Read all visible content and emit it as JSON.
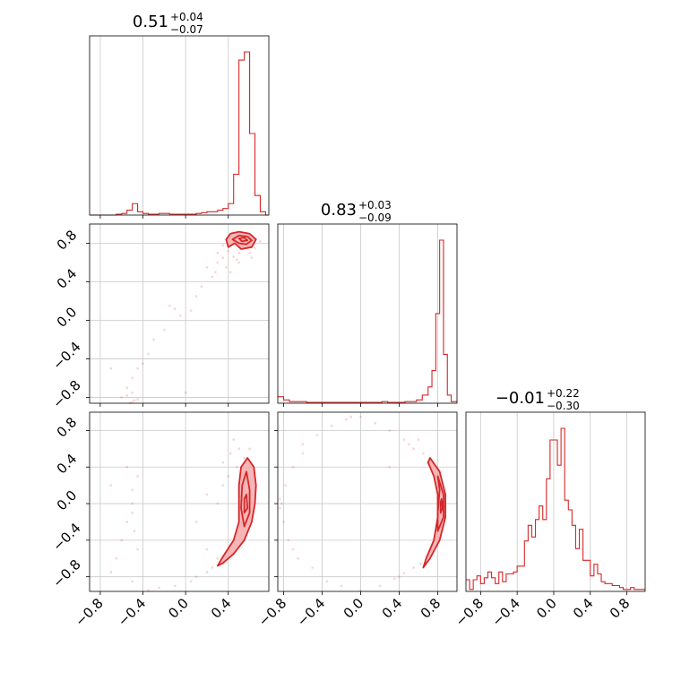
{
  "colors": {
    "accent": "#d62728",
    "grid": "#c8c8c8",
    "axis": "#000000",
    "fill": "#f4a9aa"
  },
  "ticks": {
    "x": [
      "−0.8",
      "−0.4",
      "0.0",
      "0.4",
      "0.8"
    ],
    "y": [
      "−0.8",
      "−0.4",
      "0.0",
      "0.4",
      "0.8"
    ]
  },
  "chart_data": [
    {
      "type": "histogram",
      "panel": "p0_hist",
      "title_value": "0.51",
      "title_plus": "+0.04",
      "title_minus": "−0.07",
      "xlim": [
        -0.9,
        0.78
      ],
      "bins": [
        -0.9,
        -0.85,
        -0.8,
        -0.75,
        -0.7,
        -0.65,
        -0.6,
        -0.55,
        -0.5,
        -0.45,
        -0.4,
        -0.35,
        -0.3,
        -0.25,
        -0.2,
        -0.15,
        -0.1,
        -0.05,
        0.0,
        0.05,
        0.1,
        0.15,
        0.2,
        0.25,
        0.3,
        0.35,
        0.4,
        0.45,
        0.5,
        0.55,
        0.6,
        0.65,
        0.7,
        0.75,
        0.78
      ],
      "values": [
        0,
        0,
        0,
        0,
        0,
        0.005,
        0.01,
        0.03,
        0.07,
        0.02,
        0.01,
        0.005,
        0.005,
        0.01,
        0.01,
        0.005,
        0.005,
        0.005,
        0.005,
        0.005,
        0.01,
        0.015,
        0.02,
        0.02,
        0.03,
        0.04,
        0.07,
        0.25,
        0.95,
        1.0,
        0.5,
        0.12,
        0.02,
        0.0
      ],
      "grid": true
    },
    {
      "type": "histogram",
      "panel": "p1_hist",
      "title_value": "0.83",
      "title_plus": "+0.03",
      "title_minus": "−0.09",
      "xlim": [
        -0.86,
        1.0
      ],
      "bins": [
        -0.86,
        -0.8,
        -0.74,
        -0.68,
        -0.62,
        -0.56,
        -0.5,
        -0.44,
        -0.38,
        -0.32,
        -0.26,
        -0.2,
        -0.14,
        -0.08,
        -0.02,
        0.04,
        0.1,
        0.16,
        0.22,
        0.28,
        0.34,
        0.4,
        0.46,
        0.52,
        0.58,
        0.64,
        0.7,
        0.74,
        0.78,
        0.82,
        0.86,
        0.9,
        0.94,
        1.0
      ],
      "values": [
        0.04,
        0.02,
        0.01,
        0.01,
        0.01,
        0.005,
        0.005,
        0.005,
        0.005,
        0.005,
        0.005,
        0.005,
        0.005,
        0.005,
        0.005,
        0.005,
        0.005,
        0.005,
        0.01,
        0.005,
        0.005,
        0.005,
        0.01,
        0.01,
        0.02,
        0.05,
        0.1,
        0.2,
        0.55,
        1.0,
        0.3,
        0.05,
        0.01
      ],
      "grid": true
    },
    {
      "type": "histogram",
      "panel": "p2_hist",
      "title_value": "−0.01",
      "title_plus": "+0.22",
      "title_minus": "−0.30",
      "xlim": [
        -0.96,
        1.0
      ],
      "bins": [
        -0.96,
        -0.92,
        -0.88,
        -0.84,
        -0.8,
        -0.76,
        -0.72,
        -0.68,
        -0.64,
        -0.6,
        -0.56,
        -0.52,
        -0.48,
        -0.44,
        -0.4,
        -0.36,
        -0.32,
        -0.28,
        -0.24,
        -0.2,
        -0.16,
        -0.12,
        -0.08,
        -0.04,
        0.0,
        0.04,
        0.08,
        0.12,
        0.16,
        0.2,
        0.24,
        0.28,
        0.32,
        0.36,
        0.4,
        0.44,
        0.48,
        0.52,
        0.56,
        0.6,
        0.64,
        0.68,
        0.72,
        0.76,
        0.8,
        0.84,
        0.88,
        0.92,
        0.96,
        1.0
      ],
      "values": [
        0.06,
        0.01,
        0.06,
        0.08,
        0.04,
        0.07,
        0.1,
        0.07,
        0.04,
        0.1,
        0.05,
        0.09,
        0.09,
        0.1,
        0.13,
        0.13,
        0.26,
        0.34,
        0.28,
        0.37,
        0.44,
        0.37,
        0.58,
        0.78,
        0.78,
        0.65,
        0.84,
        0.47,
        0.42,
        0.34,
        0.22,
        0.32,
        0.16,
        0.16,
        0.08,
        0.14,
        0.09,
        0.05,
        0.04,
        0.04,
        0.03,
        0.03,
        0.02,
        0.01,
        0.01,
        0.02,
        0.01,
        0.01,
        0.01
      ],
      "grid": true
    },
    {
      "type": "scatter",
      "panel": "p10_scatter",
      "xlim": [
        -0.9,
        0.78
      ],
      "ylim": [
        -0.86,
        1.0
      ],
      "points": [
        [
          0.35,
          0.78
        ],
        [
          0.4,
          0.72
        ],
        [
          0.3,
          0.6
        ],
        [
          0.28,
          0.5
        ],
        [
          0.25,
          0.45
        ],
        [
          0.45,
          0.66
        ],
        [
          0.35,
          0.65
        ],
        [
          0.2,
          0.55
        ],
        [
          0.38,
          0.55
        ],
        [
          0.3,
          0.7
        ],
        [
          0.15,
          0.35
        ],
        [
          0.1,
          0.25
        ],
        [
          0.05,
          0.1
        ],
        [
          -0.05,
          0.05
        ],
        [
          -0.1,
          0.12
        ],
        [
          -0.2,
          -0.1
        ],
        [
          -0.3,
          -0.2
        ],
        [
          -0.35,
          -0.35
        ],
        [
          -0.4,
          -0.45
        ],
        [
          -0.45,
          -0.5
        ],
        [
          -0.5,
          -0.6
        ],
        [
          -0.55,
          -0.7
        ],
        [
          -0.5,
          -0.75
        ],
        [
          -0.55,
          -0.78
        ],
        [
          -0.45,
          -0.82
        ],
        [
          -0.6,
          -0.8
        ],
        [
          -0.5,
          -0.85
        ],
        [
          -0.48,
          -0.83
        ],
        [
          -0.52,
          -0.86
        ],
        [
          -0.7,
          -0.5
        ],
        [
          0.0,
          -0.75
        ],
        [
          -0.15,
          0.15
        ],
        [
          0.42,
          0.5
        ],
        [
          0.5,
          0.6
        ],
        [
          0.6,
          0.7
        ],
        [
          0.55,
          0.8
        ],
        [
          0.52,
          0.75
        ],
        [
          0.45,
          0.8
        ],
        [
          0.65,
          0.75
        ],
        [
          0.7,
          0.82
        ],
        [
          0.5,
          0.7
        ],
        [
          0.62,
          0.65
        ],
        [
          0.48,
          0.63
        ]
      ],
      "contours": [
        [
          [
            0.38,
            0.84
          ],
          [
            0.42,
            0.9
          ],
          [
            0.5,
            0.92
          ],
          [
            0.6,
            0.9
          ],
          [
            0.66,
            0.84
          ],
          [
            0.62,
            0.76
          ],
          [
            0.52,
            0.74
          ],
          [
            0.46,
            0.8
          ],
          [
            0.4,
            0.76
          ]
        ],
        [
          [
            0.44,
            0.84
          ],
          [
            0.5,
            0.88
          ],
          [
            0.58,
            0.87
          ],
          [
            0.62,
            0.83
          ],
          [
            0.57,
            0.79
          ],
          [
            0.5,
            0.8
          ]
        ],
        [
          [
            0.5,
            0.85
          ],
          [
            0.55,
            0.86
          ],
          [
            0.58,
            0.83
          ],
          [
            0.53,
            0.82
          ]
        ]
      ],
      "grid": true
    },
    {
      "type": "scatter",
      "panel": "p20_scatter",
      "xlim": [
        -0.9,
        0.78
      ],
      "ylim": [
        -0.96,
        1.0
      ],
      "points": [
        [
          0.45,
          0.7
        ],
        [
          0.5,
          0.6
        ],
        [
          0.55,
          0.5
        ],
        [
          0.6,
          0.4
        ],
        [
          0.4,
          0.3
        ],
        [
          0.35,
          0.2
        ],
        [
          0.3,
          0.0
        ],
        [
          0.2,
          0.1
        ],
        [
          0.1,
          -0.2
        ],
        [
          0.2,
          -0.5
        ],
        [
          0.3,
          -0.6
        ],
        [
          0.25,
          -0.7
        ],
        [
          0.2,
          -0.75
        ],
        [
          0.1,
          -0.8
        ],
        [
          0.05,
          -0.85
        ],
        [
          -0.1,
          -0.9
        ],
        [
          -0.25,
          -0.92
        ],
        [
          -0.35,
          -0.95
        ],
        [
          -0.5,
          0.0
        ],
        [
          -0.5,
          -0.1
        ],
        [
          -0.5,
          0.15
        ],
        [
          -0.55,
          -0.2
        ],
        [
          -0.6,
          -0.4
        ],
        [
          -0.65,
          -0.6
        ],
        [
          -0.7,
          -0.75
        ],
        [
          -0.5,
          -0.85
        ],
        [
          -0.45,
          0.3
        ],
        [
          -0.48,
          -0.3
        ],
        [
          -0.55,
          0.4
        ],
        [
          -0.7,
          0.2
        ],
        [
          -0.45,
          -0.5
        ],
        [
          0.35,
          0.45
        ],
        [
          0.42,
          0.55
        ],
        [
          0.48,
          0.4
        ],
        [
          0.6,
          0.6
        ],
        [
          0.58,
          -0.3
        ],
        [
          0.55,
          -0.4
        ],
        [
          0.45,
          -0.55
        ],
        [
          0.4,
          -0.6
        ],
        [
          0.35,
          -0.66
        ]
      ],
      "contours": [
        [
          [
            0.58,
            0.5
          ],
          [
            0.64,
            0.4
          ],
          [
            0.66,
            0.2
          ],
          [
            0.65,
            0.0
          ],
          [
            0.62,
            -0.2
          ],
          [
            0.55,
            -0.4
          ],
          [
            0.45,
            -0.55
          ],
          [
            0.35,
            -0.65
          ],
          [
            0.3,
            -0.68
          ],
          [
            0.35,
            -0.58
          ],
          [
            0.45,
            -0.4
          ],
          [
            0.5,
            -0.2
          ],
          [
            0.5,
            0.0
          ],
          [
            0.5,
            0.2
          ],
          [
            0.52,
            0.4
          ]
        ],
        [
          [
            0.57,
            0.35
          ],
          [
            0.6,
            0.15
          ],
          [
            0.6,
            -0.1
          ],
          [
            0.55,
            -0.25
          ],
          [
            0.52,
            -0.05
          ],
          [
            0.53,
            0.2
          ]
        ],
        [
          [
            0.57,
            0.1
          ],
          [
            0.58,
            -0.05
          ],
          [
            0.55,
            -0.1
          ],
          [
            0.55,
            0.05
          ]
        ]
      ],
      "grid": true
    },
    {
      "type": "scatter",
      "panel": "p21_scatter",
      "xlim": [
        -0.86,
        1.0
      ],
      "ylim": [
        -0.96,
        1.0
      ],
      "points": [
        [
          0.6,
          0.7
        ],
        [
          0.55,
          0.6
        ],
        [
          0.65,
          0.55
        ],
        [
          0.7,
          0.45
        ],
        [
          0.5,
          0.65
        ],
        [
          0.45,
          0.7
        ],
        [
          0.3,
          0.8
        ],
        [
          0.15,
          0.88
        ],
        [
          0.0,
          0.95
        ],
        [
          -0.15,
          0.92
        ],
        [
          -0.3,
          0.85
        ],
        [
          -0.45,
          0.75
        ],
        [
          -0.6,
          0.55
        ],
        [
          -0.7,
          0.4
        ],
        [
          -0.78,
          0.2
        ],
        [
          -0.82,
          0.0
        ],
        [
          -0.8,
          -0.2
        ],
        [
          -0.75,
          -0.4
        ],
        [
          -0.65,
          -0.6
        ],
        [
          -0.5,
          -0.7
        ],
        [
          -0.35,
          -0.85
        ],
        [
          -0.2,
          -0.9
        ],
        [
          0.0,
          -0.95
        ],
        [
          0.2,
          -0.9
        ],
        [
          0.35,
          -0.82
        ],
        [
          0.45,
          -0.76
        ],
        [
          0.55,
          -0.7
        ],
        [
          0.62,
          -0.66
        ],
        [
          -0.84,
          0.05
        ],
        [
          -0.84,
          -0.05
        ],
        [
          0.3,
          0.4
        ],
        [
          -0.1,
          0.95
        ],
        [
          -0.6,
          0.65
        ],
        [
          -0.7,
          -0.5
        ],
        [
          0.4,
          -0.8
        ]
      ],
      "contours": [
        [
          [
            0.72,
            0.5
          ],
          [
            0.82,
            0.35
          ],
          [
            0.88,
            0.1
          ],
          [
            0.88,
            -0.15
          ],
          [
            0.82,
            -0.4
          ],
          [
            0.72,
            -0.6
          ],
          [
            0.65,
            -0.7
          ],
          [
            0.68,
            -0.6
          ],
          [
            0.76,
            -0.4
          ],
          [
            0.8,
            -0.15
          ],
          [
            0.8,
            0.1
          ],
          [
            0.76,
            0.3
          ],
          [
            0.7,
            0.45
          ]
        ],
        [
          [
            0.8,
            0.3
          ],
          [
            0.86,
            0.1
          ],
          [
            0.86,
            -0.15
          ],
          [
            0.8,
            -0.3
          ],
          [
            0.8,
            -0.1
          ],
          [
            0.82,
            0.15
          ]
        ],
        [
          [
            0.84,
            0.05
          ],
          [
            0.85,
            -0.05
          ],
          [
            0.83,
            -0.1
          ],
          [
            0.83,
            0.02
          ]
        ]
      ],
      "grid": true
    }
  ]
}
